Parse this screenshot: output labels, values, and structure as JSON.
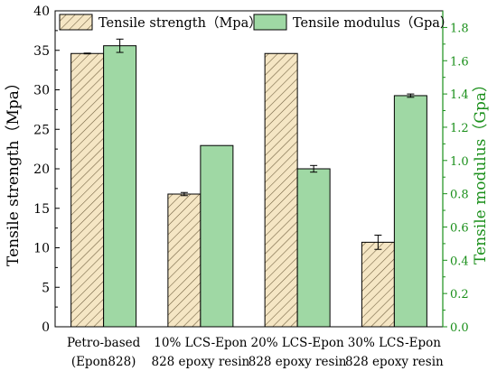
{
  "chart_data": {
    "type": "bar",
    "title": "",
    "categories": [
      [
        "Petro-based",
        "(Epon828)"
      ],
      [
        "10% LCS-Epon",
        "828 epoxy resin"
      ],
      [
        "20% LCS-Epon",
        "828 epoxy resin"
      ],
      [
        "30% LCS-Epon",
        "828 epoxy resin"
      ]
    ],
    "series": [
      {
        "name": "Tensile strength（Mpa）",
        "axis": "left",
        "pattern": "hatch",
        "fill": "#f5e6c4",
        "stroke": "#000000",
        "values": [
          34.6,
          16.8,
          34.6,
          10.7
        ],
        "errors": [
          0.05,
          0.2,
          0.0,
          0.9
        ]
      },
      {
        "name": "Tensile modulus（Gpa）",
        "axis": "right",
        "pattern": "solid",
        "fill": "#9fd8a4",
        "stroke": "#000000",
        "values": [
          1.69,
          1.09,
          0.95,
          1.39
        ],
        "errors": [
          0.04,
          0.0,
          0.02,
          0.01
        ]
      }
    ],
    "y_left": {
      "label": "Tensile strength（Mpa）",
      "min": 0,
      "max": 40,
      "step": 5,
      "ticks": [
        "0",
        "5",
        "10",
        "15",
        "20",
        "25",
        "30",
        "35",
        "40"
      ],
      "color": "#000000"
    },
    "y_right": {
      "label": "Tensile modulus（Gpa）",
      "min": 0,
      "max": 1.9,
      "step": 0.2,
      "ticks": [
        "0.0",
        "0.2",
        "0.4",
        "0.6",
        "0.8",
        "1.0",
        "1.2",
        "1.4",
        "1.6",
        "1.8"
      ],
      "color": "#1a8f1a"
    },
    "legend_position": "top",
    "grid": false
  }
}
